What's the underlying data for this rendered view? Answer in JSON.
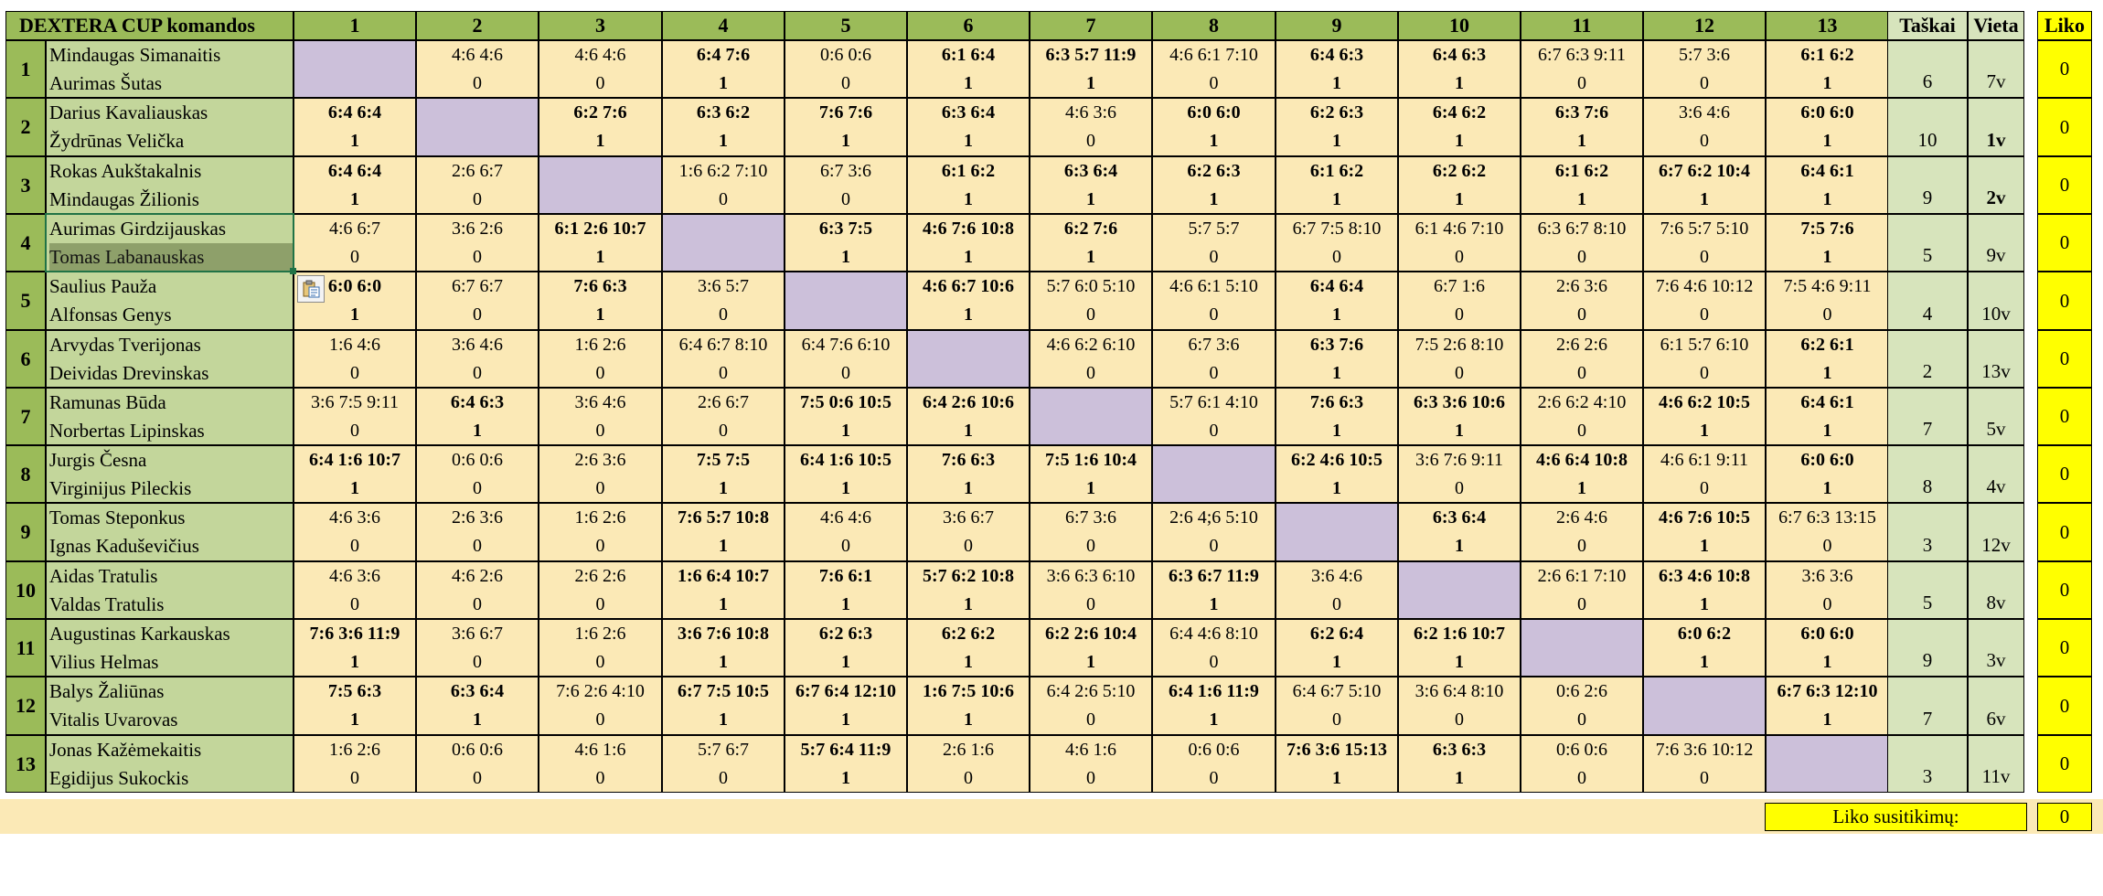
{
  "header": {
    "title": "DEXTERA CUP komandos",
    "columns": [
      "1",
      "2",
      "3",
      "4",
      "5",
      "6",
      "7",
      "8",
      "9",
      "10",
      "11",
      "12",
      "13"
    ],
    "points_label": "Taškai",
    "place_label": "Vieta",
    "left_label": "Liko"
  },
  "rows": [
    {
      "num": "1",
      "p1": "Mindaugas Simanaitis",
      "p2": "Aurimas Šutas",
      "points": "6",
      "place": "7v",
      "place_bold": false,
      "left": "0",
      "cells": [
        null,
        {
          "s": "4:6 4:6",
          "r": "0",
          "b": false
        },
        {
          "s": "4:6 4:6",
          "r": "0",
          "b": false
        },
        {
          "s": "6:4 7:6",
          "r": "1",
          "b": true
        },
        {
          "s": "0:6 0:6",
          "r": "0",
          "b": false
        },
        {
          "s": "6:1 6:4",
          "r": "1",
          "b": true
        },
        {
          "s": "6:3 5:7 11:9",
          "r": "1",
          "b": true
        },
        {
          "s": "4:6 6:1 7:10",
          "r": "0",
          "b": false
        },
        {
          "s": "6:4 6:3",
          "r": "1",
          "b": true
        },
        {
          "s": "6:4 6:3",
          "r": "1",
          "b": true
        },
        {
          "s": "6:7 6:3 9:11",
          "r": "0",
          "b": false
        },
        {
          "s": "5:7 3:6",
          "r": "0",
          "b": false
        },
        {
          "s": "6:1 6:2",
          "r": "1",
          "b": true
        }
      ]
    },
    {
      "num": "2",
      "p1": "Darius Kavaliauskas",
      "p2": "Žydrūnas Velička",
      "points": "10",
      "place": "1v",
      "place_bold": true,
      "left": "0",
      "cells": [
        {
          "s": "6:4 6:4",
          "r": "1",
          "b": true
        },
        null,
        {
          "s": "6:2 7:6",
          "r": "1",
          "b": true
        },
        {
          "s": "6:3 6:2",
          "r": "1",
          "b": true
        },
        {
          "s": "7:6 7:6",
          "r": "1",
          "b": true
        },
        {
          "s": "6:3 6:4",
          "r": "1",
          "b": true
        },
        {
          "s": "4:6 3:6",
          "r": "0",
          "b": false
        },
        {
          "s": "6:0 6:0",
          "r": "1",
          "b": true
        },
        {
          "s": "6:2 6:3",
          "r": "1",
          "b": true
        },
        {
          "s": "6:4 6:2",
          "r": "1",
          "b": true
        },
        {
          "s": "6:3 7:6",
          "r": "1",
          "b": true
        },
        {
          "s": "3:6 4:6",
          "r": "0",
          "b": false
        },
        {
          "s": "6:0 6:0",
          "r": "1",
          "b": true
        }
      ]
    },
    {
      "num": "3",
      "p1": "Rokas Aukštakalnis",
      "p2": "Mindaugas Žilionis",
      "points": "9",
      "place": "2v",
      "place_bold": true,
      "left": "0",
      "cells": [
        {
          "s": "6:4 6:4",
          "r": "1",
          "b": true
        },
        {
          "s": "2:6 6:7",
          "r": "0",
          "b": false
        },
        null,
        {
          "s": "1:6 6:2 7:10",
          "r": "0",
          "b": false
        },
        {
          "s": "6:7 3:6",
          "r": "0",
          "b": false
        },
        {
          "s": "6:1 6:2",
          "r": "1",
          "b": true
        },
        {
          "s": "6:3 6:4",
          "r": "1",
          "b": true
        },
        {
          "s": "6:2 6:3",
          "r": "1",
          "b": true
        },
        {
          "s": "6:1 6:2",
          "r": "1",
          "b": true
        },
        {
          "s": "6:2 6:2",
          "r": "1",
          "b": true
        },
        {
          "s": "6:1 6:2",
          "r": "1",
          "b": true
        },
        {
          "s": "6:7 6:2 10:4",
          "r": "1",
          "b": true
        },
        {
          "s": "6:4 6:1",
          "r": "1",
          "b": true
        }
      ]
    },
    {
      "num": "4",
      "p1": "Aurimas Girdzijauskas",
      "p2": "Tomas Labanauskas",
      "points": "5",
      "place": "9v",
      "place_bold": false,
      "left": "0",
      "cells": [
        {
          "s": "4:6 6:7",
          "r": "0",
          "b": false
        },
        {
          "s": "3:6 2:6",
          "r": "0",
          "b": false
        },
        {
          "s": "6:1 2:6 10:7",
          "r": "1",
          "b": true
        },
        null,
        {
          "s": "6:3 7:5",
          "r": "1",
          "b": true
        },
        {
          "s": "4:6 7:6 10:8",
          "r": "1",
          "b": true
        },
        {
          "s": "6:2 7:6",
          "r": "1",
          "b": true
        },
        {
          "s": "5:7 5:7",
          "r": "0",
          "b": false
        },
        {
          "s": "6:7 7:5 8:10",
          "r": "0",
          "b": false
        },
        {
          "s": "6:1 4:6 7:10",
          "r": "0",
          "b": false
        },
        {
          "s": "6:3 6:7 8:10",
          "r": "0",
          "b": false
        },
        {
          "s": "7:6 5:7 5:10",
          "r": "0",
          "b": false
        },
        {
          "s": "7:5 7:6",
          "r": "1",
          "b": true
        }
      ]
    },
    {
      "num": "5",
      "p1": "Saulius Pauža",
      "p2": "Alfonsas Genys",
      "points": "4",
      "place": "10v",
      "place_bold": false,
      "left": "0",
      "cells": [
        {
          "s": "6:0 6:0",
          "r": "1",
          "b": true
        },
        {
          "s": "6:7 6:7",
          "r": "0",
          "b": false
        },
        {
          "s": "7:6 6:3",
          "r": "1",
          "b": true
        },
        {
          "s": "3:6 5:7",
          "r": "0",
          "b": false
        },
        null,
        {
          "s": "4:6 6:7 10:6",
          "r": "1",
          "b": true
        },
        {
          "s": "5:7 6:0 5:10",
          "r": "0",
          "b": false
        },
        {
          "s": "4:6 6:1 5:10",
          "r": "0",
          "b": false
        },
        {
          "s": "6:4 6:4",
          "r": "1",
          "b": true
        },
        {
          "s": "6:7 1:6",
          "r": "0",
          "b": false
        },
        {
          "s": "2:6 3:6",
          "r": "0",
          "b": false
        },
        {
          "s": "7:6 4:6 10:12",
          "r": "0",
          "b": false
        },
        {
          "s": "7:5 4:6 9:11",
          "r": "0",
          "b": false
        }
      ]
    },
    {
      "num": "6",
      "p1": "Arvydas Tverijonas",
      "p2": "Deividas Drevinskas",
      "points": "2",
      "place": "13v",
      "place_bold": false,
      "left": "0",
      "cells": [
        {
          "s": "1:6 4:6",
          "r": "0",
          "b": false
        },
        {
          "s": "3:6 4:6",
          "r": "0",
          "b": false
        },
        {
          "s": "1:6 2:6",
          "r": "0",
          "b": false
        },
        {
          "s": "6:4 6:7 8:10",
          "r": "0",
          "b": false
        },
        {
          "s": "6:4 7:6 6:10",
          "r": "0",
          "b": false
        },
        null,
        {
          "s": "4:6 6:2 6:10",
          "r": "0",
          "b": false
        },
        {
          "s": "6:7 3:6",
          "r": "0",
          "b": false
        },
        {
          "s": "6:3 7:6",
          "r": "1",
          "b": true
        },
        {
          "s": "7:5 2:6 8:10",
          "r": "0",
          "b": false
        },
        {
          "s": "2:6 2:6",
          "r": "0",
          "b": false
        },
        {
          "s": "6:1 5:7 6:10",
          "r": "0",
          "b": false
        },
        {
          "s": "6:2 6:1",
          "r": "1",
          "b": true
        }
      ]
    },
    {
      "num": "7",
      "p1": "Ramunas Būda",
      "p2": "Norbertas Lipinskas",
      "points": "7",
      "place": "5v",
      "place_bold": false,
      "left": "0",
      "cells": [
        {
          "s": "3:6 7:5 9:11",
          "r": "0",
          "b": false
        },
        {
          "s": "6:4 6:3",
          "r": "1",
          "b": true
        },
        {
          "s": "3:6 4:6",
          "r": "0",
          "b": false
        },
        {
          "s": "2:6 6:7",
          "r": "0",
          "b": false
        },
        {
          "s": "7:5 0:6 10:5",
          "r": "1",
          "b": true
        },
        {
          "s": "6:4 2:6 10:6",
          "r": "1",
          "b": true
        },
        null,
        {
          "s": "5:7 6:1 4:10",
          "r": "0",
          "b": false
        },
        {
          "s": "7:6 6:3",
          "r": "1",
          "b": true
        },
        {
          "s": "6:3 3:6 10:6",
          "r": "1",
          "b": true
        },
        {
          "s": "2:6 6:2 4:10",
          "r": "0",
          "b": false
        },
        {
          "s": "4:6 6:2 10:5",
          "r": "1",
          "b": true
        },
        {
          "s": "6:4 6:1",
          "r": "1",
          "b": true
        }
      ]
    },
    {
      "num": "8",
      "p1": "Jurgis Česna",
      "p2": "Virginijus Pileckis",
      "points": "8",
      "place": "4v",
      "place_bold": false,
      "left": "0",
      "cells": [
        {
          "s": "6:4 1:6 10:7",
          "r": "1",
          "b": true
        },
        {
          "s": "0:6 0:6",
          "r": "0",
          "b": false
        },
        {
          "s": "2:6 3:6",
          "r": "0",
          "b": false
        },
        {
          "s": "7:5 7:5",
          "r": "1",
          "b": true
        },
        {
          "s": "6:4 1:6 10:5",
          "r": "1",
          "b": true
        },
        {
          "s": "7:6 6:3",
          "r": "1",
          "b": true
        },
        {
          "s": "7:5 1:6 10:4",
          "r": "1",
          "b": true
        },
        null,
        {
          "s": "6:2 4:6 10:5",
          "r": "1",
          "b": true
        },
        {
          "s": "3:6 7:6 9:11",
          "r": "0",
          "b": false
        },
        {
          "s": "4:6 6:4 10:8",
          "r": "1",
          "b": true
        },
        {
          "s": "4:6 6:1 9:11",
          "r": "0",
          "b": false
        },
        {
          "s": "6:0 6:0",
          "r": "1",
          "b": true
        }
      ]
    },
    {
      "num": "9",
      "p1": "Tomas Steponkus",
      "p2": "Ignas Kaduševičius",
      "points": "3",
      "place": "12v",
      "place_bold": false,
      "left": "0",
      "cells": [
        {
          "s": "4:6 3:6",
          "r": "0",
          "b": false
        },
        {
          "s": "2:6 3:6",
          "r": "0",
          "b": false
        },
        {
          "s": "1:6 2:6",
          "r": "0",
          "b": false
        },
        {
          "s": "7:6 5:7 10:8",
          "r": "1",
          "b": true
        },
        {
          "s": "4:6 4:6",
          "r": "0",
          "b": false
        },
        {
          "s": "3:6 6:7",
          "r": "0",
          "b": false
        },
        {
          "s": "6:7 3:6",
          "r": "0",
          "b": false
        },
        {
          "s": "2:6 4;6 5:10",
          "r": "0",
          "b": false
        },
        null,
        {
          "s": "6:3 6:4",
          "r": "1",
          "b": true
        },
        {
          "s": "2:6 4:6",
          "r": "0",
          "b": false
        },
        {
          "s": "4:6 7:6 10:5",
          "r": "1",
          "b": true
        },
        {
          "s": "6:7 6:3 13:15",
          "r": "0",
          "b": false
        }
      ]
    },
    {
      "num": "10",
      "p1": "Aidas Tratulis",
      "p2": "Valdas Tratulis",
      "points": "5",
      "place": "8v",
      "place_bold": false,
      "left": "0",
      "cells": [
        {
          "s": "4:6 3:6",
          "r": "0",
          "b": false
        },
        {
          "s": "4:6 2:6",
          "r": "0",
          "b": false
        },
        {
          "s": "2:6 2:6",
          "r": "0",
          "b": false
        },
        {
          "s": "1:6 6:4 10:7",
          "r": "1",
          "b": true
        },
        {
          "s": "7:6 6:1",
          "r": "1",
          "b": true
        },
        {
          "s": "5:7 6:2 10:8",
          "r": "1",
          "b": true
        },
        {
          "s": "3:6 6:3 6:10",
          "r": "0",
          "b": false
        },
        {
          "s": "6:3 6:7 11:9",
          "r": "1",
          "b": true
        },
        {
          "s": "3:6 4:6",
          "r": "0",
          "b": false
        },
        null,
        {
          "s": "2:6 6:1 7:10",
          "r": "0",
          "b": false
        },
        {
          "s": "6:3 4:6 10:8",
          "r": "1",
          "b": true
        },
        {
          "s": "3:6 3:6",
          "r": "0",
          "b": false
        }
      ]
    },
    {
      "num": "11",
      "p1": "Augustinas Karkauskas",
      "p2": "Vilius Helmas",
      "points": "9",
      "place": "3v",
      "place_bold": false,
      "left": "0",
      "cells": [
        {
          "s": "7:6 3:6 11:9",
          "r": "1",
          "b": true
        },
        {
          "s": "3:6 6:7",
          "r": "0",
          "b": false
        },
        {
          "s": "1:6 2:6",
          "r": "0",
          "b": false
        },
        {
          "s": "3:6 7:6 10:8",
          "r": "1",
          "b": true
        },
        {
          "s": "6:2 6:3",
          "r": "1",
          "b": true
        },
        {
          "s": "6:2 6:2",
          "r": "1",
          "b": true
        },
        {
          "s": "6:2 2:6 10:4",
          "r": "1",
          "b": true
        },
        {
          "s": "6:4 4:6 8:10",
          "r": "0",
          "b": false
        },
        {
          "s": "6:2 6:4",
          "r": "1",
          "b": true
        },
        {
          "s": "6:2 1:6 10:7",
          "r": "1",
          "b": true
        },
        null,
        {
          "s": "6:0 6:2",
          "r": "1",
          "b": true
        },
        {
          "s": "6:0 6:0",
          "r": "1",
          "b": true
        }
      ]
    },
    {
      "num": "12",
      "p1": "Balys Žaliūnas",
      "p2": "Vitalis Uvarovas",
      "points": "7",
      "place": "6v",
      "place_bold": false,
      "left": "0",
      "cells": [
        {
          "s": "7:5 6:3",
          "r": "1",
          "b": true
        },
        {
          "s": "6:3 6:4",
          "r": "1",
          "b": true
        },
        {
          "s": "7:6 2:6 4:10",
          "r": "0",
          "b": false
        },
        {
          "s": "6:7 7:5 10:5",
          "r": "1",
          "b": true
        },
        {
          "s": "6:7 6:4 12:10",
          "r": "1",
          "b": true
        },
        {
          "s": "1:6 7:5 10:6",
          "r": "1",
          "b": true
        },
        {
          "s": "6:4 2:6 5:10",
          "r": "0",
          "b": false
        },
        {
          "s": "6:4 1:6 11:9",
          "r": "1",
          "b": true
        },
        {
          "s": "6:4 6:7 5:10",
          "r": "0",
          "b": false
        },
        {
          "s": "3:6 6:4 8:10",
          "r": "0",
          "b": false
        },
        {
          "s": "0:6 2:6",
          "r": "0",
          "b": false
        },
        null,
        {
          "s": "6:7 6:3 12:10",
          "r": "1",
          "b": true
        }
      ]
    },
    {
      "num": "13",
      "p1": "Jonas Kažėmekaitis",
      "p2": "Egidijus Sukockis",
      "points": "3",
      "place": "11v",
      "place_bold": false,
      "left": "0",
      "cells": [
        {
          "s": "1:6 2:6",
          "r": "0",
          "b": false
        },
        {
          "s": "0:6 0:6",
          "r": "0",
          "b": false
        },
        {
          "s": "4:6 1:6",
          "r": "0",
          "b": false
        },
        {
          "s": "5:7 6:7",
          "r": "0",
          "b": false
        },
        {
          "s": "5:7 6:4 11:9",
          "r": "1",
          "b": true
        },
        {
          "s": "2:6 1:6",
          "r": "0",
          "b": false
        },
        {
          "s": "4:6 1:6",
          "r": "0",
          "b": false
        },
        {
          "s": "0:6 0:6",
          "r": "0",
          "b": false
        },
        {
          "s": "7:6 3:6 15:13",
          "r": "1",
          "b": true
        },
        {
          "s": "6:3 6:3",
          "r": "1",
          "b": true
        },
        {
          "s": "0:6 0:6",
          "r": "0",
          "b": false
        },
        {
          "s": "7:6 3:6 10:12",
          "r": "0",
          "b": false
        },
        null
      ]
    }
  ],
  "footer": {
    "label": "Liko susitikimų:",
    "value": "0"
  },
  "icons": {
    "paste_options": "paste-options-icon"
  },
  "colors": {
    "header_green": "#9bbb59",
    "name_green": "#c3d69b",
    "cell_cream": "#fbe9b6",
    "diagonal_purple": "#ccc0da",
    "liko_yellow": "#ffff00",
    "selection_green": "#217346"
  }
}
